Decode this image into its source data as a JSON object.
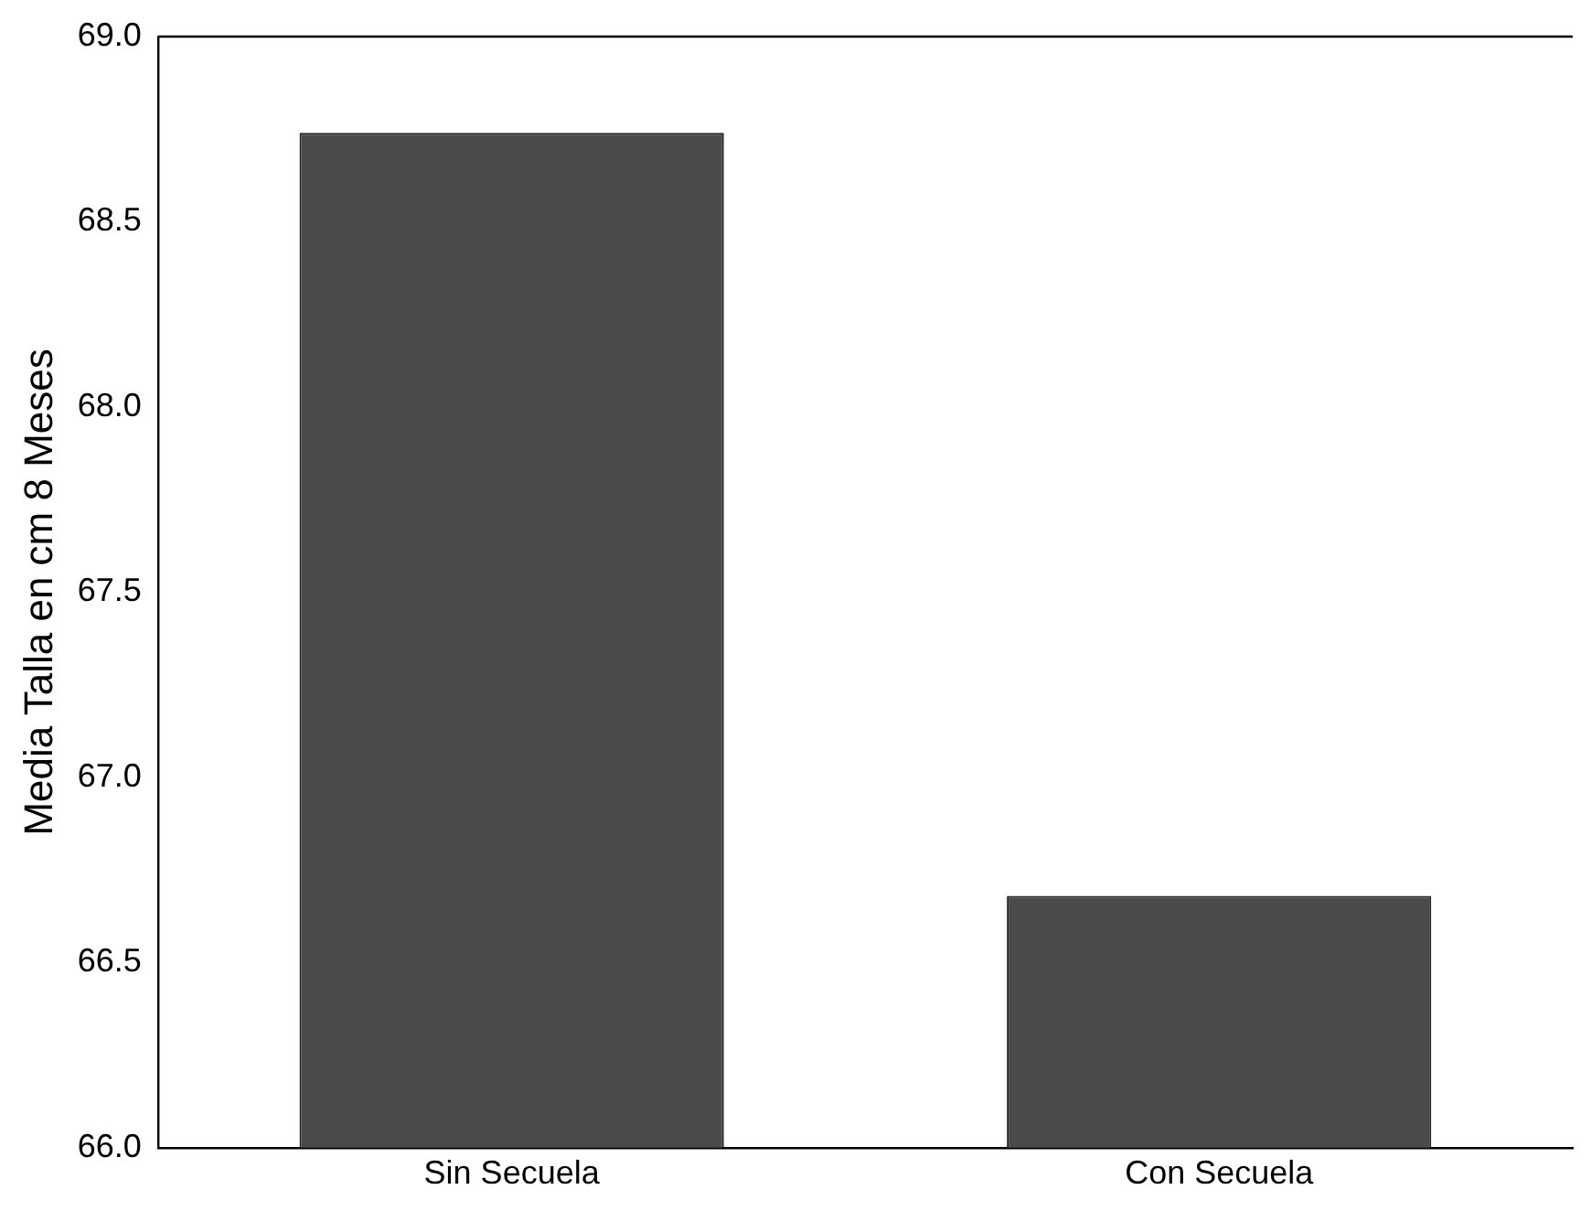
{
  "chart_data": {
    "type": "bar",
    "ylabel": "Media Talla en cm 8 Meses",
    "categories": [
      "Sin Secuela",
      "Con Secuela"
    ],
    "values": [
      68.74,
      66.68
    ],
    "color": "#4a4a4a",
    "ylim": [
      66.0,
      69.0
    ],
    "yticks": [
      {
        "value": 66,
        "label": "66.0"
      },
      {
        "value": 66.5,
        "label": "66.5"
      },
      {
        "value": 67,
        "label": "67.0"
      },
      {
        "value": 67.5,
        "label": "67.5"
      },
      {
        "value": 68,
        "label": "68.0"
      },
      {
        "value": 68.5,
        "label": "68.5"
      },
      {
        "value": 69,
        "label": "69.0"
      }
    ],
    "grid": false,
    "legend": false
  }
}
